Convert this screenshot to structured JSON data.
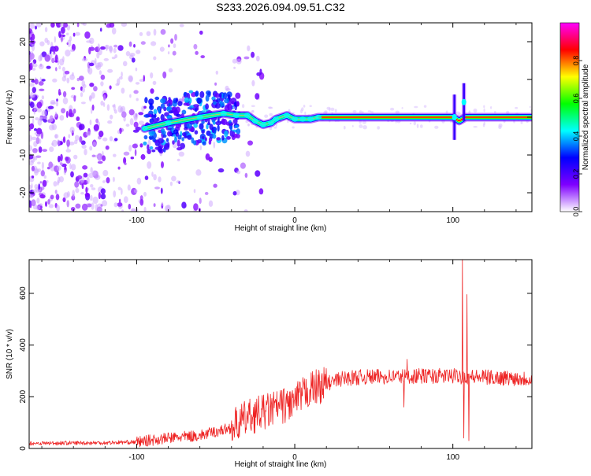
{
  "title": "S233.2026.094.09.51.C32",
  "chart_data": [
    {
      "type": "heatmap",
      "name": "spectrogram",
      "xlabel": "Height of straight line (km)",
      "ylabel": "Frequency (Hz)",
      "xlim": [
        -168,
        150
      ],
      "ylim": [
        -25,
        25
      ],
      "xticks": [
        -100,
        0,
        100
      ],
      "yticks": [
        -20,
        -10,
        0,
        10,
        20
      ],
      "colorbar": {
        "label": "Normalized spectral amplitude",
        "range": [
          0,
          1
        ],
        "ticks": [
          0.0,
          0.2,
          0.4,
          0.6,
          0.8
        ],
        "colors": [
          "#ffffff",
          "#7f00ff",
          "#0000ff",
          "#00ffff",
          "#00ff00",
          "#ffff00",
          "#ff0000",
          "#ff00ff"
        ]
      },
      "noise_region": {
        "x_range": [
          -168,
          -40
        ],
        "freq_range": [
          -25,
          25
        ],
        "typical_amplitude": 0.15
      },
      "main_trace": [
        {
          "x": -95,
          "f": -3.0
        },
        {
          "x": -80,
          "f": -1.5
        },
        {
          "x": -60,
          "f": 0.0
        },
        {
          "x": -45,
          "f": 1.0
        },
        {
          "x": -37,
          "f": 0.5
        },
        {
          "x": -30,
          "f": 0.5
        },
        {
          "x": -25,
          "f": -1.0
        },
        {
          "x": -20,
          "f": -2.0
        },
        {
          "x": -15,
          "f": -1.5
        },
        {
          "x": -12,
          "f": -0.5
        },
        {
          "x": -5,
          "f": 0.5
        },
        {
          "x": 0,
          "f": -0.5
        },
        {
          "x": 5,
          "f": -0.5
        },
        {
          "x": 10,
          "f": -0.5
        },
        {
          "x": 15,
          "f": 0.0
        },
        {
          "x": 30,
          "f": 0.0
        },
        {
          "x": 60,
          "f": 0.0
        },
        {
          "x": 100,
          "f": 0.0
        },
        {
          "x": 104,
          "f": -1.0
        },
        {
          "x": 108,
          "f": 0.0
        },
        {
          "x": 130,
          "f": 0.0
        },
        {
          "x": 150,
          "f": 0.0
        }
      ],
      "spikes": [
        {
          "x": 101,
          "f_min": -6,
          "f_max": 6
        },
        {
          "x": 107,
          "f_min": -1,
          "f_max": 9
        }
      ]
    },
    {
      "type": "line",
      "name": "snr",
      "xlabel": "Height of straight line (km)",
      "ylabel": "SNR (10 * v/v)",
      "xlim": [
        -168,
        150
      ],
      "ylim": [
        0,
        730
      ],
      "xticks": [
        -100,
        0,
        100
      ],
      "yticks": [
        0,
        200,
        400,
        600
      ],
      "color": "#ee2222",
      "envelope": [
        {
          "x": -168,
          "y": 20
        },
        {
          "x": -120,
          "y": 22
        },
        {
          "x": -100,
          "y": 25
        },
        {
          "x": -80,
          "y": 40
        },
        {
          "x": -60,
          "y": 50
        },
        {
          "x": -40,
          "y": 80
        },
        {
          "x": -30,
          "y": 120
        },
        {
          "x": -20,
          "y": 140
        },
        {
          "x": -10,
          "y": 160
        },
        {
          "x": 0,
          "y": 180
        },
        {
          "x": 10,
          "y": 230
        },
        {
          "x": 20,
          "y": 250
        },
        {
          "x": 30,
          "y": 270
        },
        {
          "x": 40,
          "y": 275
        },
        {
          "x": 60,
          "y": 278
        },
        {
          "x": 80,
          "y": 280
        },
        {
          "x": 100,
          "y": 280
        },
        {
          "x": 120,
          "y": 275
        },
        {
          "x": 150,
          "y": 270
        }
      ],
      "events": [
        {
          "x": 69,
          "y": 160
        },
        {
          "x": 71,
          "y": 345
        },
        {
          "x": 106,
          "y": 730
        },
        {
          "x": 107,
          "y": 40
        },
        {
          "x": 109,
          "y": 595
        },
        {
          "x": 110,
          "y": 30
        }
      ]
    }
  ]
}
